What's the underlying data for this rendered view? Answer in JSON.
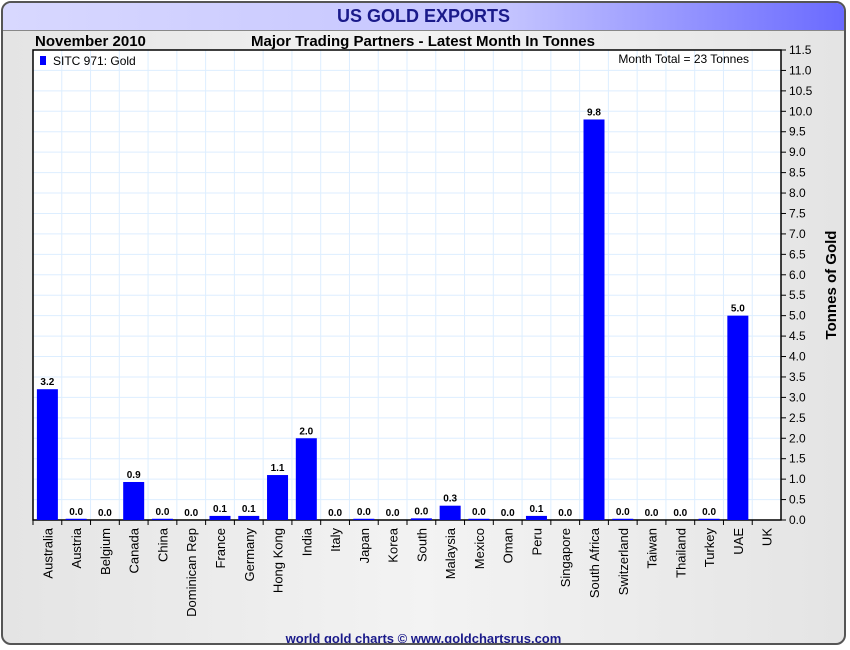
{
  "title": "US GOLD EXPORTS",
  "period": "November 2010",
  "subtitle": "Major Trading Partners - Latest Month In Tonnes",
  "footer": "world gold charts © www.goldchartsrus.com",
  "colors": {
    "bar": "#0000ff",
    "grid": "#ddeeff",
    "title": "#1a1a8a"
  },
  "chart_data": {
    "type": "bar",
    "title": "US GOLD EXPORTS",
    "legend": "SITC 971: Gold",
    "legend_position": "top-left",
    "annotation": "Month Total = 23 Tonnes",
    "ylabel": "Tonnes of Gold",
    "ylim": [
      0,
      11.5
    ],
    "ytick_step": 0.5,
    "grid": true,
    "categories": [
      "Australia",
      "Austria",
      "Belgium",
      "Canada",
      "China",
      "Dominican Rep",
      "France",
      "Germany",
      "Hong Kong",
      "India",
      "Italy",
      "Japan",
      "Korea",
      "South",
      "Malaysia",
      "Mexico",
      "Oman",
      "Peru",
      "Singapore",
      "South Africa",
      "Switzerland",
      "Taiwan",
      "Thailand",
      "Turkey",
      "UAE",
      "UK"
    ],
    "values": [
      3.2,
      0.03,
      0,
      0.93,
      0.03,
      0,
      0.1,
      0.1,
      1.1,
      2.0,
      0,
      0.03,
      0,
      0.04,
      0.35,
      0.03,
      0,
      0.1,
      0,
      9.8,
      0.03,
      0,
      0,
      0.03,
      5.0,
      null
    ],
    "labels": [
      "3.2",
      "0.0",
      "0.0",
      "0.9",
      "0.0",
      "0.0",
      "0.1",
      "0.1",
      "1.1",
      "2.0",
      "0.0",
      "0.0",
      "0.0",
      "0.0",
      "0.3",
      "0.0",
      "0.0",
      "0.1",
      "0.0",
      "9.8",
      "0.0",
      "0.0",
      "0.0",
      "0.0",
      "5.0",
      ""
    ]
  }
}
